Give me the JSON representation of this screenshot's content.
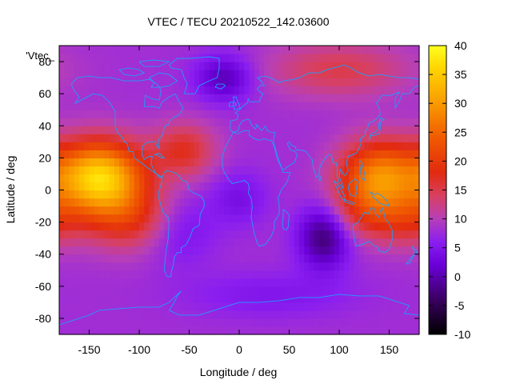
{
  "chart_data": {
    "type": "heatmap",
    "title": "VTEC / TECU 20210522_142.03600",
    "xlabel": "Longitude / deg",
    "ylabel": "Latitude / deg",
    "xlim": [
      -180,
      180
    ],
    "ylim": [
      -90,
      90
    ],
    "x_ticks": [
      -150,
      -100,
      -50,
      0,
      50,
      100,
      150
    ],
    "y_ticks": [
      80,
      60,
      40,
      20,
      0,
      -20,
      -40,
      -60,
      -80
    ],
    "colorbar": {
      "range": [
        -10,
        40
      ],
      "ticks": [
        40,
        35,
        30,
        25,
        20,
        15,
        10,
        5,
        0,
        -5,
        -10
      ],
      "palette": [
        {
          "v": -10,
          "color": "#000000"
        },
        {
          "v": -4,
          "color": "#3a0060"
        },
        {
          "v": 2,
          "color": "#6a00d8"
        },
        {
          "v": 6,
          "color": "#8a1ef0"
        },
        {
          "v": 10,
          "color": "#b73fb8"
        },
        {
          "v": 14,
          "color": "#d84060"
        },
        {
          "v": 18,
          "color": "#e22a10"
        },
        {
          "v": 24,
          "color": "#f05a00"
        },
        {
          "v": 30,
          "color": "#f99a00"
        },
        {
          "v": 36,
          "color": "#ffd400"
        },
        {
          "v": 40,
          "color": "#ffff20"
        }
      ]
    },
    "field": {
      "base": 8,
      "features": [
        {
          "lon": -140,
          "lat": 8,
          "amp": 28,
          "slon": 32,
          "slat": 16
        },
        {
          "lon": -110,
          "lat": -18,
          "amp": 9,
          "slon": 30,
          "slat": 14
        },
        {
          "lon": -55,
          "lat": 25,
          "amp": 9,
          "slon": 22,
          "slat": 12
        },
        {
          "lon": 140,
          "lat": 8,
          "amp": 20,
          "slon": 28,
          "slat": 16
        },
        {
          "lon": 170,
          "lat": -20,
          "amp": 6,
          "slon": 25,
          "slat": 12
        },
        {
          "lon": 100,
          "lat": 75,
          "amp": 7,
          "slon": 50,
          "slat": 12
        },
        {
          "lon": 120,
          "lat": -15,
          "amp": 6,
          "slon": 30,
          "slat": 12
        },
        {
          "lon": 85,
          "lat": -28,
          "amp": -12,
          "slon": 18,
          "slat": 14
        },
        {
          "lon": -15,
          "lat": 70,
          "amp": -8,
          "slon": 20,
          "slat": 10
        },
        {
          "lon": 0,
          "lat": -5,
          "amp": -4,
          "slon": 20,
          "slat": 12
        },
        {
          "lon": -60,
          "lat": -25,
          "amp": -4,
          "slon": 25,
          "slat": 15
        },
        {
          "lon": 30,
          "lat": -65,
          "amp": -3,
          "slon": 60,
          "slat": 10
        }
      ]
    },
    "key_label": "'Vtec_"
  }
}
